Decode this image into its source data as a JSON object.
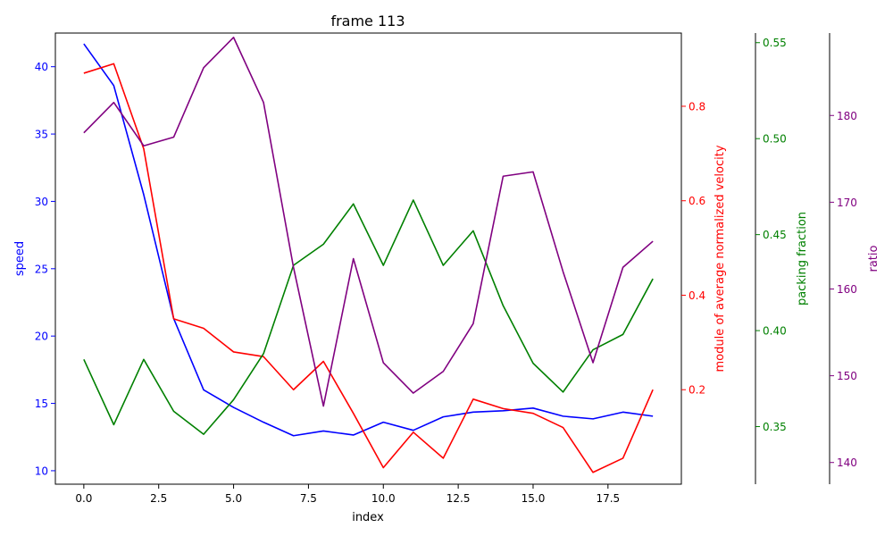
{
  "chart_data": {
    "type": "line",
    "title": "frame 113",
    "xlabel": "index",
    "x": [
      0,
      1,
      2,
      3,
      4,
      5,
      6,
      7,
      8,
      9,
      10,
      11,
      12,
      13,
      14,
      15,
      16,
      17,
      18,
      19
    ],
    "xlim": [
      -0.95,
      19.95
    ],
    "xticks": [
      0.0,
      2.5,
      5.0,
      7.5,
      10.0,
      12.5,
      15.0,
      17.5
    ],
    "xtick_labels": [
      "0.0",
      "2.5",
      "5.0",
      "7.5",
      "10.0",
      "12.5",
      "15.0",
      "17.5"
    ],
    "grid": false,
    "series": [
      {
        "name": "speed",
        "color": "#0000ff",
        "axis": "left",
        "ylabel": "speed",
        "ylim": [
          9.0,
          42.5
        ],
        "yticks": [
          10,
          15,
          20,
          25,
          30,
          35,
          40
        ],
        "ytick_labels": [
          "10",
          "15",
          "20",
          "25",
          "30",
          "35",
          "40"
        ],
        "values": [
          41.7,
          38.6,
          30.5,
          21.3,
          16.0,
          14.7,
          13.6,
          12.6,
          12.95,
          12.65,
          13.6,
          13.0,
          14.0,
          14.35,
          14.45,
          14.65,
          14.05,
          13.85,
          14.35,
          14.05
        ]
      },
      {
        "name": "module of average normalized velocity",
        "color": "#ff0000",
        "axis": "right-1",
        "ylabel": "module of average normalized velocity",
        "ylim": [
          0.0,
          0.955
        ],
        "yticks": [
          0.2,
          0.4,
          0.6,
          0.8
        ],
        "ytick_labels": [
          "0.2",
          "0.4",
          "0.6",
          "0.8"
        ],
        "values": [
          0.87,
          0.89,
          0.71,
          0.35,
          0.33,
          0.28,
          0.27,
          0.2,
          0.26,
          0.15,
          0.035,
          0.11,
          0.055,
          0.18,
          0.16,
          0.15,
          0.12,
          0.025,
          0.055,
          0.2
        ]
      },
      {
        "name": "packing fraction",
        "color": "#008000",
        "axis": "right-2",
        "ylabel": "packing fraction",
        "ylim": [
          0.32,
          0.555
        ],
        "yticks": [
          0.35,
          0.4,
          0.45,
          0.5,
          0.55
        ],
        "ytick_labels": [
          "0.35",
          "0.40",
          "0.45",
          "0.50",
          "0.55"
        ],
        "values": [
          0.385,
          0.351,
          0.385,
          0.358,
          0.346,
          0.364,
          0.388,
          0.434,
          0.445,
          0.466,
          0.434,
          0.468,
          0.434,
          0.452,
          0.413,
          0.383,
          0.368,
          0.39,
          0.398,
          0.427
        ]
      },
      {
        "name": "ratio",
        "color": "#800080",
        "axis": "right-3",
        "ylabel": "ratio",
        "ylim": [
          137.5,
          189.5
        ],
        "yticks": [
          140,
          150,
          160,
          170,
          180
        ],
        "ytick_labels": [
          "140",
          "150",
          "160",
          "170",
          "180"
        ],
        "values": [
          178.0,
          181.5,
          176.5,
          177.5,
          185.5,
          189.0,
          181.5,
          162.5,
          146.5,
          163.5,
          151.5,
          148.0,
          150.5,
          156.0,
          173.0,
          173.5,
          162.0,
          151.5,
          162.5,
          165.5
        ]
      }
    ]
  }
}
